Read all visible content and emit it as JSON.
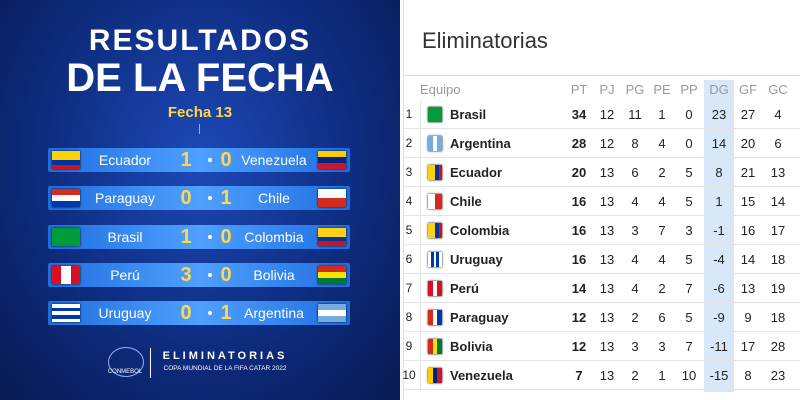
{
  "left": {
    "title_line1": "RESULTADOS",
    "title_line2": "DE LA FECHA",
    "subtitle": "Fecha 13",
    "matches": [
      {
        "home": "Ecuador",
        "home_score": 1,
        "away_score": 0,
        "away": "Venezuela"
      },
      {
        "home": "Paraguay",
        "home_score": 0,
        "away_score": 1,
        "away": "Chile"
      },
      {
        "home": "Brasil",
        "home_score": 1,
        "away_score": 0,
        "away": "Colombia"
      },
      {
        "home": "Perú",
        "home_score": 3,
        "away_score": 0,
        "away": "Bolivia"
      },
      {
        "home": "Uruguay",
        "home_score": 0,
        "away_score": 1,
        "away": "Argentina"
      }
    ],
    "footer_logo": "CONMEBOL",
    "footer_title": "ELIMINATORIAS",
    "footer_subtitle": "COPA MUNDIAL DE LA FIFA CATAR 2022"
  },
  "right": {
    "title": "Eliminatorias",
    "table": {
      "columns": [
        "Equipo",
        "PT",
        "PJ",
        "PG",
        "PE",
        "PP",
        "DG",
        "GF",
        "GC"
      ],
      "rows": [
        {
          "pos": 1,
          "team": "Brasil",
          "stats": [
            34,
            12,
            11,
            1,
            0,
            23,
            27,
            4
          ]
        },
        {
          "pos": 2,
          "team": "Argentina",
          "stats": [
            28,
            12,
            8,
            4,
            0,
            14,
            20,
            6
          ]
        },
        {
          "pos": 3,
          "team": "Ecuador",
          "stats": [
            20,
            13,
            6,
            2,
            5,
            8,
            21,
            13
          ]
        },
        {
          "pos": 4,
          "team": "Chile",
          "stats": [
            16,
            13,
            4,
            4,
            5,
            1,
            15,
            14
          ]
        },
        {
          "pos": 5,
          "team": "Colombia",
          "stats": [
            16,
            13,
            3,
            7,
            3,
            -1,
            16,
            17
          ]
        },
        {
          "pos": 6,
          "team": "Uruguay",
          "stats": [
            16,
            13,
            4,
            4,
            5,
            -4,
            14,
            18
          ]
        },
        {
          "pos": 7,
          "team": "Perú",
          "stats": [
            14,
            13,
            4,
            2,
            7,
            -6,
            13,
            19
          ]
        },
        {
          "pos": 8,
          "team": "Paraguay",
          "stats": [
            12,
            13,
            2,
            6,
            5,
            -9,
            9,
            18
          ]
        },
        {
          "pos": 9,
          "team": "Bolivia",
          "stats": [
            12,
            13,
            3,
            3,
            7,
            -11,
            17,
            28
          ]
        },
        {
          "pos": 10,
          "team": "Venezuela",
          "stats": [
            7,
            13,
            2,
            1,
            10,
            -15,
            8,
            23
          ]
        }
      ]
    }
  }
}
